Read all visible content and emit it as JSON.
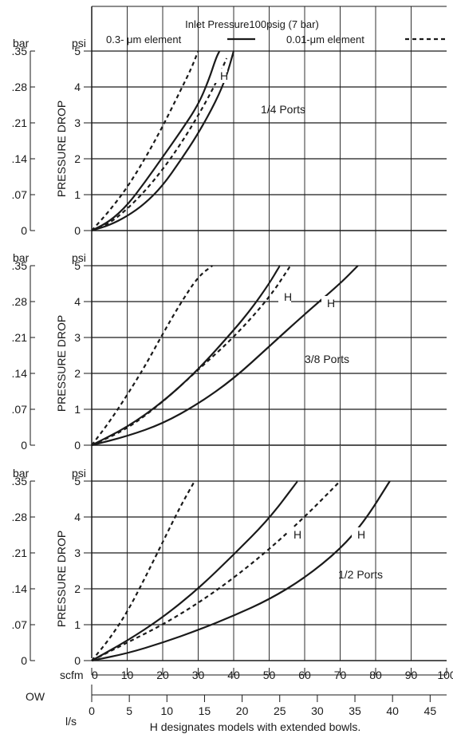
{
  "header": {
    "title": "Inlet Pressure100psig (7 bar)",
    "legend_solid": "0.3- μm element",
    "legend_dashed": "0.01-μm element"
  },
  "footer": {
    "note": "H designates models with extended bowls.",
    "flow_label": "OW"
  },
  "axes": {
    "bar_label": "bar",
    "psi_label": "psi",
    "ylabel": "PRESSURE DROP",
    "scfm_label": "scfm",
    "ls_label": "l/s",
    "scfm_ticks": [
      "0",
      "10",
      "20",
      "30",
      "40",
      "50",
      "60",
      "70",
      "80",
      "90",
      "100"
    ],
    "ls_ticks": [
      "0",
      "5",
      "10",
      "15",
      "20",
      "25",
      "30",
      "35",
      "40",
      "45"
    ],
    "psi_ticks": [
      "0",
      "1",
      "2",
      "3",
      "4",
      "5"
    ],
    "bar_ticks": [
      "0",
      ".07",
      ".14",
      ".21",
      ".28",
      ".35"
    ]
  },
  "colors": {
    "line": "#1a1a1a",
    "grid": "#1a1a1a",
    "background": "#ffffff"
  },
  "chart_data": [
    {
      "type": "line",
      "title": "1/4 Ports",
      "xlabel": "scfm",
      "ylabel": "PRESSURE DROP",
      "xlim": [
        0,
        100
      ],
      "ylim": [
        0,
        5
      ],
      "grid": true,
      "marker": "H",
      "series": [
        {
          "name": "0.3- μm element",
          "style": "solid",
          "x": [
            0,
            5,
            10,
            15,
            20,
            25,
            30,
            33,
            35,
            36
          ],
          "y": [
            0,
            0.25,
            0.7,
            1.35,
            2.05,
            2.75,
            3.5,
            4.2,
            4.8,
            5.0
          ]
        },
        {
          "name": "0.3- μm element",
          "style": "solid",
          "x": [
            0,
            5,
            10,
            15,
            20,
            25,
            30,
            35,
            38,
            40
          ],
          "y": [
            0,
            0.15,
            0.4,
            0.75,
            1.25,
            1.95,
            2.7,
            3.6,
            4.3,
            5.0
          ]
        },
        {
          "name": "0.01-μm element",
          "style": "dashed",
          "x": [
            0,
            5,
            10,
            15,
            20,
            25,
            28,
            30
          ],
          "y": [
            0,
            0.55,
            1.2,
            2.0,
            2.9,
            3.9,
            4.5,
            5.0
          ]
        },
        {
          "name": "0.01-μm element",
          "style": "dashed",
          "x": [
            0,
            5,
            10,
            15,
            20,
            25,
            30,
            35,
            38
          ],
          "y": [
            0,
            0.2,
            0.6,
            1.1,
            1.7,
            2.4,
            3.2,
            4.1,
            4.8
          ]
        }
      ]
    },
    {
      "type": "line",
      "title": "3/8 Ports",
      "xlabel": "scfm",
      "ylabel": "PRESSURE DROP",
      "xlim": [
        0,
        100
      ],
      "ylim": [
        0,
        5
      ],
      "grid": true,
      "marker": "H",
      "series": [
        {
          "name": "0.3- μm element",
          "style": "solid",
          "x": [
            0,
            10,
            20,
            30,
            40,
            45,
            50,
            53
          ],
          "y": [
            0,
            0.5,
            1.2,
            2.1,
            3.2,
            3.8,
            4.5,
            5.0
          ]
        },
        {
          "name": "0.3- μm element",
          "style": "solid",
          "x": [
            0,
            10,
            20,
            30,
            40,
            50,
            60,
            70,
            75
          ],
          "y": [
            0,
            0.25,
            0.6,
            1.15,
            1.85,
            2.75,
            3.65,
            4.5,
            5.0
          ]
        },
        {
          "name": "0.01-μm element",
          "style": "dashed",
          "x": [
            0,
            5,
            10,
            15,
            20,
            25,
            30,
            34
          ],
          "y": [
            0,
            0.65,
            1.4,
            2.2,
            3.1,
            3.95,
            4.7,
            5.0
          ]
        },
        {
          "name": "0.01-μm element",
          "style": "dashed",
          "x": [
            0,
            10,
            20,
            30,
            40,
            50,
            56
          ],
          "y": [
            0,
            0.45,
            1.2,
            2.1,
            3.0,
            4.1,
            5.0
          ]
        }
      ]
    },
    {
      "type": "line",
      "title": "1/2 Ports",
      "xlabel": "scfm",
      "ylabel": "PRESSURE DROP",
      "xlim": [
        0,
        100
      ],
      "ylim": [
        0,
        5
      ],
      "grid": true,
      "marker": "H",
      "series": [
        {
          "name": "0.3- μm element",
          "style": "solid",
          "x": [
            0,
            10,
            20,
            30,
            40,
            50,
            58
          ],
          "y": [
            0,
            0.55,
            1.2,
            2.0,
            2.95,
            3.95,
            5.0
          ]
        },
        {
          "name": "0.3- μm element",
          "style": "solid",
          "x": [
            0,
            10,
            20,
            30,
            40,
            50,
            60,
            70,
            77,
            84
          ],
          "y": [
            0,
            0.2,
            0.5,
            0.85,
            1.25,
            1.7,
            2.3,
            3.1,
            3.9,
            5.0
          ]
        },
        {
          "name": "0.01-μm element",
          "style": "dashed",
          "x": [
            0,
            5,
            10,
            15,
            20,
            25,
            29
          ],
          "y": [
            0,
            0.6,
            1.35,
            2.3,
            3.3,
            4.3,
            5.0
          ]
        },
        {
          "name": "0.01-μm element",
          "style": "dashed",
          "x": [
            0,
            10,
            20,
            30,
            40,
            50,
            60,
            70
          ],
          "y": [
            0,
            0.5,
            1.0,
            1.6,
            2.3,
            3.1,
            4.0,
            5.0
          ]
        }
      ]
    }
  ]
}
